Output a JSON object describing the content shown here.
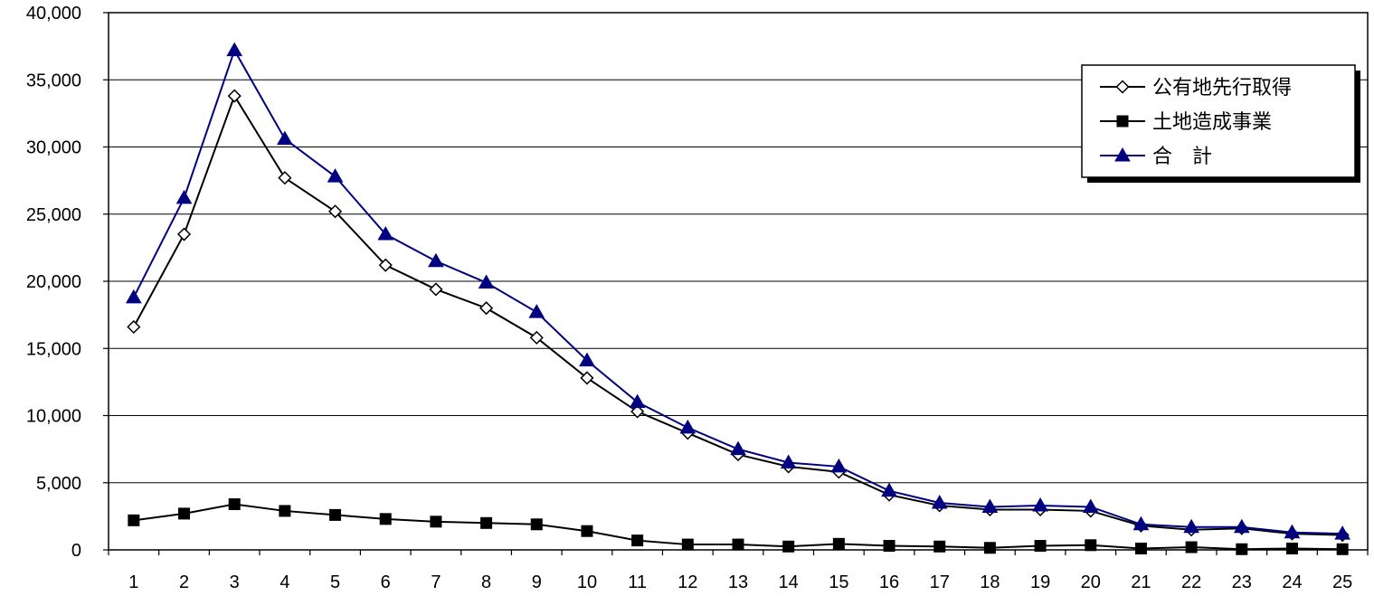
{
  "chart_data": {
    "type": "line",
    "categories": [
      "1",
      "2",
      "3",
      "4",
      "5",
      "6",
      "7",
      "8",
      "9",
      "10",
      "11",
      "12",
      "13",
      "14",
      "15",
      "16",
      "17",
      "18",
      "19",
      "20",
      "21",
      "22",
      "23",
      "24",
      "25"
    ],
    "ylim": [
      0,
      40000
    ],
    "yticks": [
      0,
      5000,
      10000,
      15000,
      20000,
      25000,
      30000,
      35000,
      40000
    ],
    "ytick_labels": [
      "0",
      "5,000",
      "10,000",
      "15,000",
      "20,000",
      "25,000",
      "30,000",
      "35,000",
      "40,000"
    ],
    "grid": true,
    "legend_position": "top-right",
    "series": [
      {
        "name": "公有地先行取得",
        "marker": "diamond-open",
        "color": "#000000",
        "values": [
          16600,
          23500,
          33800,
          27700,
          25200,
          21200,
          19400,
          18000,
          15800,
          12800,
          10300,
          8700,
          7100,
          6200,
          5800,
          4100,
          3300,
          3000,
          3000,
          2900,
          1800,
          1500,
          1600,
          1200,
          1100
        ]
      },
      {
        "name": "土地造成事業",
        "marker": "square-filled",
        "color": "#000000",
        "values": [
          2200,
          2700,
          3400,
          2900,
          2600,
          2300,
          2100,
          2000,
          1900,
          1400,
          700,
          400,
          400,
          250,
          450,
          300,
          250,
          150,
          300,
          350,
          100,
          200,
          50,
          100,
          50
        ]
      },
      {
        "name": "合　計",
        "marker": "triangle-filled",
        "color": "#000080",
        "values": [
          18800,
          26200,
          37200,
          30600,
          27800,
          23500,
          21500,
          19900,
          17700,
          14100,
          11000,
          9100,
          7500,
          6500,
          6200,
          4400,
          3500,
          3200,
          3300,
          3200,
          1900,
          1700,
          1700,
          1300,
          1200
        ]
      }
    ]
  }
}
